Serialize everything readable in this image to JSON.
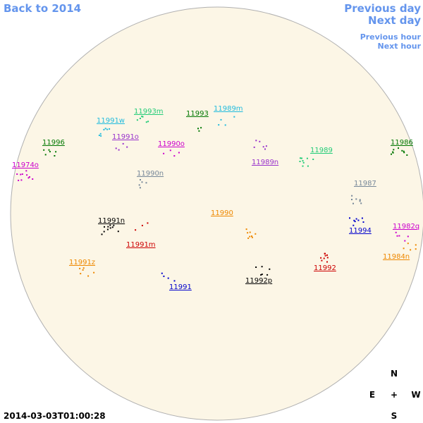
{
  "nav": {
    "back": "Back to 2014",
    "previous_day": "Previous day",
    "next_day": "Next day",
    "previous_hour": "Previous hour",
    "next_hour": "Next hour"
  },
  "regions": [
    {
      "label": "11993m",
      "color": "#22cc77"
    },
    {
      "label": "11993",
      "color": "#007700"
    },
    {
      "label": "11989m",
      "color": "#22bbdd"
    },
    {
      "label": "11991w",
      "color": "#22bbdd"
    },
    {
      "label": "11991o",
      "color": "#9933cc"
    },
    {
      "label": "11990o",
      "color": "#cc00cc"
    },
    {
      "label": "11996",
      "color": "#007700"
    },
    {
      "label": "11974o",
      "color": "#cc00cc"
    },
    {
      "label": "11989n",
      "color": "#9933cc"
    },
    {
      "label": "11989",
      "color": "#22cc77"
    },
    {
      "label": "11986",
      "color": "#007700"
    },
    {
      "label": "11990n",
      "color": "#778899"
    },
    {
      "label": "11987",
      "color": "#778899"
    },
    {
      "label": "11990",
      "color": "#ee8800"
    },
    {
      "label": "11991n",
      "color": "#000000"
    },
    {
      "label": "11994",
      "color": "#0000cc"
    },
    {
      "label": "11982q",
      "color": "#cc00cc"
    },
    {
      "label": "11991m",
      "color": "#cc0000"
    },
    {
      "label": "11984n",
      "color": "#ee8800"
    },
    {
      "label": "11991z",
      "color": "#ee8800"
    },
    {
      "label": "11992",
      "color": "#cc0000"
    },
    {
      "label": "11992p",
      "color": "#000000"
    },
    {
      "label": "11991",
      "color": "#0000cc"
    }
  ],
  "compass": {
    "north": "N",
    "east": "E",
    "center": "+",
    "west": "W",
    "south": "S"
  },
  "timestamp": "2014-03-03T01:00:28"
}
